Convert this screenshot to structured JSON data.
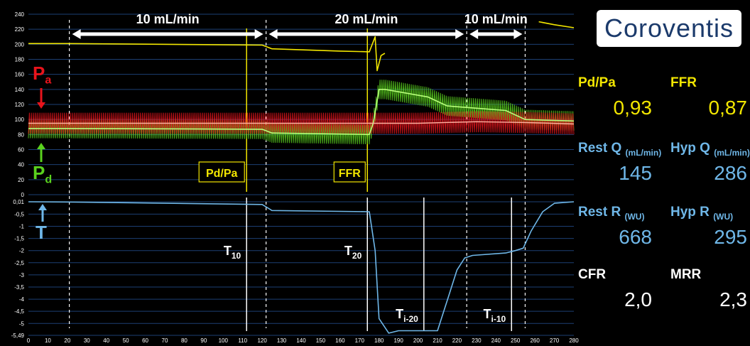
{
  "chart_data": {
    "type": "line",
    "x_ticks": [
      "0",
      "10",
      "20",
      "30",
      "40",
      "50",
      "60",
      "70",
      "80",
      "90",
      "100",
      "110",
      "120",
      "130",
      "140",
      "150",
      "160",
      "170",
      "180",
      "190",
      "200",
      "210",
      "220",
      "230",
      "240",
      "250",
      "260",
      "270",
      "280"
    ],
    "pressure_axis": {
      "ylim": [
        0,
        240
      ],
      "ticks": [
        "240",
        "220",
        "200",
        "180",
        "160",
        "140",
        "120",
        "100",
        "80",
        "60",
        "40",
        "20",
        "0"
      ]
    },
    "temperature_axis": {
      "ylim": [
        -5.49,
        0.01
      ],
      "ticks": [
        "0,01",
        "-0,5",
        "-1",
        "-1,5",
        "-2",
        "-2,5",
        "-3",
        "-3,5",
        "-4",
        "-4,5",
        "-5",
        "-5,49"
      ]
    },
    "series": [
      {
        "name": "Pa",
        "label_main": "P",
        "label_sub": "a",
        "color": "#e8141c",
        "x": [
          0,
          20,
          120,
          175,
          178,
          200,
          230,
          255,
          280
        ],
        "y": [
          95,
          95,
          95,
          95,
          95,
          95,
          97,
          96,
          94
        ]
      },
      {
        "name": "Pd",
        "label_main": "P",
        "label_sub": "d",
        "color": "#5ad21e",
        "x": [
          0,
          20,
          120,
          125,
          175,
          177,
          180,
          183,
          205,
          215,
          230,
          245,
          255,
          280
        ],
        "y": [
          88,
          88,
          87,
          82,
          80,
          95,
          140,
          140,
          130,
          118,
          115,
          112,
          100,
          98
        ]
      },
      {
        "name": "Aortic mean",
        "color": "#f2e600",
        "x": [
          0,
          20,
          120,
          125,
          160,
          175,
          178,
          179,
          181,
          183
        ],
        "y": [
          201,
          201,
          199,
          194,
          191,
          190,
          210,
          165,
          185,
          188
        ]
      },
      {
        "name": "Aortic mean (end)",
        "color": "#f2e600",
        "x": [
          262,
          270,
          280
        ],
        "y": [
          230,
          226,
          222
        ]
      },
      {
        "name": "T",
        "label_main": "T",
        "color": "#6fb7e8",
        "x": [
          0,
          20,
          120,
          125,
          175,
          178,
          180,
          185,
          190,
          210,
          212,
          216,
          220,
          224,
          228,
          245,
          250,
          254,
          258,
          264,
          270,
          280
        ],
        "y": [
          0.01,
          0.0,
          -0.1,
          -0.35,
          -0.4,
          -2.0,
          -4.8,
          -5.4,
          -5.3,
          -5.3,
          -4.8,
          -3.8,
          -2.8,
          -2.3,
          -2.2,
          -2.1,
          -2.0,
          -1.9,
          -1.2,
          -0.4,
          -0.05,
          0.01
        ]
      }
    ],
    "phases": [
      {
        "label": "10 mL/min",
        "x_start": 21,
        "x_end": 122
      },
      {
        "label": "20 mL/min",
        "x_start": 122,
        "x_end": 225
      },
      {
        "label": "10 mL/min",
        "x_start": 225,
        "x_end": 255
      }
    ],
    "phase_boundaries_x": [
      21,
      122,
      225,
      255
    ],
    "yellow_markers": [
      {
        "label": "Pd/Pa",
        "x": 112
      },
      {
        "label": "FFR",
        "x": 174
      }
    ],
    "white_markers": [
      {
        "label_main": "T",
        "label_sub": "10",
        "x": 112
      },
      {
        "label_main": "T",
        "label_sub": "20",
        "x": 174
      },
      {
        "label_main": "T",
        "label_sub": "i-20",
        "x": 203
      },
      {
        "label_main": "T",
        "label_sub": "i-10",
        "x": 248
      }
    ]
  },
  "panel": {
    "logo": "Coroventis",
    "metrics": [
      {
        "label": "Pd/Pa",
        "unit": "",
        "value": "0,93",
        "color": "#f2e600"
      },
      {
        "label": "FFR",
        "unit": "",
        "value": "0,87",
        "color": "#f2e600"
      },
      {
        "label": "Rest Q",
        "unit": "(mL/min)",
        "value": "145",
        "color": "#6fb7e8"
      },
      {
        "label": "Hyp Q",
        "unit": "(mL/min)",
        "value": "286",
        "color": "#6fb7e8"
      },
      {
        "label": "Rest R",
        "unit": "(WU)",
        "value": "668",
        "color": "#6fb7e8"
      },
      {
        "label": "Hyp R",
        "unit": "(WU)",
        "value": "295",
        "color": "#6fb7e8"
      },
      {
        "label": "CFR",
        "unit": "",
        "value": "2,0",
        "color": "#ffffff"
      },
      {
        "label": "MRR",
        "unit": "",
        "value": "2,3",
        "color": "#ffffff"
      }
    ]
  }
}
